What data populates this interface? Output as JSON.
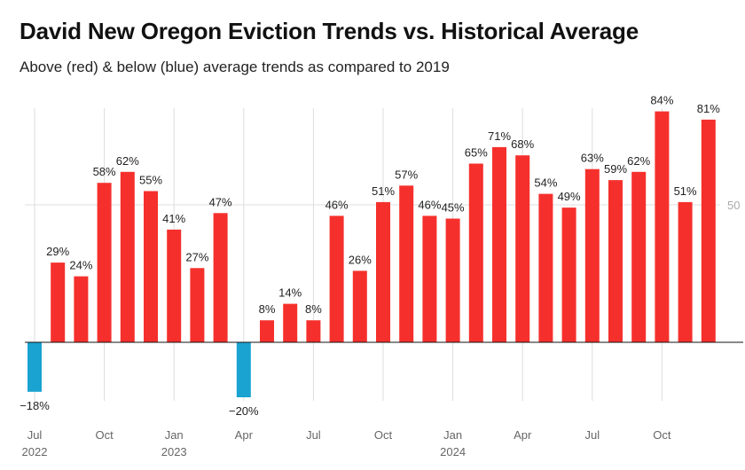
{
  "title": "David New Oregon Eviction Trends vs. Historical Average",
  "subtitle": "Above (red) & below (blue) average trends as compared to 2019",
  "colors": {
    "above": "#f5302c",
    "below": "#1aa3d0",
    "grid": "#dddddd",
    "baseline": "#111111"
  },
  "chart_data": {
    "type": "bar",
    "categories": [
      "2022-07",
      "2022-08",
      "2022-09",
      "2022-10",
      "2022-11",
      "2022-12",
      "2023-01",
      "2023-02",
      "2023-03",
      "2023-04",
      "2023-05",
      "2023-06",
      "2023-07",
      "2023-08",
      "2023-09",
      "2023-10",
      "2023-11",
      "2023-12",
      "2024-01",
      "2024-02",
      "2024-03",
      "2024-04",
      "2024-05",
      "2024-06",
      "2024-07",
      "2024-08",
      "2024-09",
      "2024-10",
      "2024-11",
      "2024-12"
    ],
    "values": [
      -18,
      29,
      24,
      58,
      62,
      55,
      41,
      27,
      47,
      -20,
      8,
      14,
      8,
      46,
      26,
      51,
      57,
      46,
      45,
      65,
      71,
      68,
      54,
      49,
      63,
      59,
      62,
      84,
      51,
      81
    ],
    "data_labels": [
      "−18%",
      "29%",
      "24%",
      "58%",
      "62%",
      "55%",
      "41%",
      "27%",
      "47%",
      "−20%",
      "8%",
      "14%",
      "8%",
      "46%",
      "26%",
      "51%",
      "57%",
      "46%",
      "45%",
      "65%",
      "71%",
      "68%",
      "54%",
      "49%",
      "63%",
      "59%",
      "62%",
      "84%",
      "51%",
      "81%"
    ],
    "x_ticks": [
      {
        "index": 0,
        "label": "Jul",
        "year": "2022"
      },
      {
        "index": 3,
        "label": "Oct",
        "year": ""
      },
      {
        "index": 6,
        "label": "Jan",
        "year": "2023"
      },
      {
        "index": 9,
        "label": "Apr",
        "year": ""
      },
      {
        "index": 12,
        "label": "Jul",
        "year": ""
      },
      {
        "index": 15,
        "label": "Oct",
        "year": ""
      },
      {
        "index": 18,
        "label": "Jan",
        "year": "2024"
      },
      {
        "index": 21,
        "label": "Apr",
        "year": ""
      },
      {
        "index": 24,
        "label": "Jul",
        "year": ""
      },
      {
        "index": 27,
        "label": "Oct",
        "year": ""
      }
    ],
    "y_reference": {
      "value": 50,
      "label": "50"
    },
    "ylim": [
      -20,
      84
    ],
    "grid": true,
    "legend": "none"
  }
}
